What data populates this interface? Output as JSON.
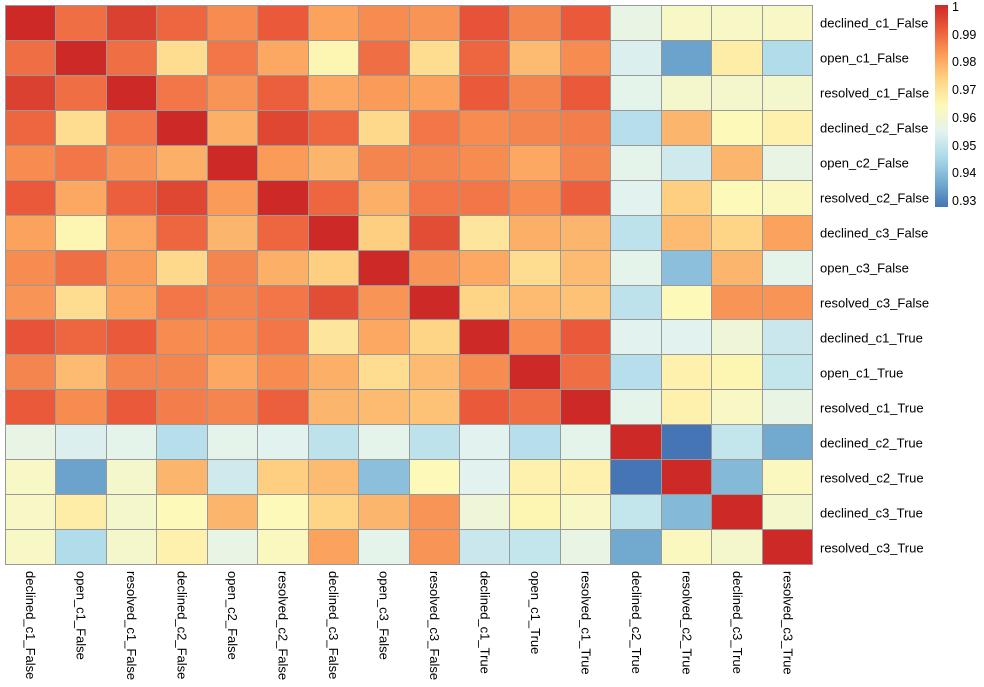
{
  "figure": {
    "background": "#ffffff",
    "grid_line_color": "#999999",
    "label_color": "#000000"
  },
  "chart_data": {
    "type": "heatmap",
    "title": "",
    "labels": [
      "declined_c1_False",
      "open_c1_False",
      "resolved_c1_False",
      "declined_c2_False",
      "open_c2_False",
      "resolved_c2_False",
      "declined_c3_False",
      "open_c3_False",
      "resolved_c3_False",
      "declined_c1_True",
      "open_c1_True",
      "resolved_c1_True",
      "declined_c2_True",
      "resolved_c2_True",
      "declined_c3_True",
      "resolved_c3_True"
    ],
    "matrix": [
      [
        1.0,
        0.989,
        0.996,
        0.99,
        0.985,
        0.992,
        0.982,
        0.985,
        0.984,
        0.993,
        0.986,
        0.992,
        0.958,
        0.963,
        0.963,
        0.963
      ],
      [
        0.989,
        1.0,
        0.989,
        0.972,
        0.988,
        0.981,
        0.966,
        0.989,
        0.972,
        0.99,
        0.978,
        0.985,
        0.955,
        0.937,
        0.968,
        0.948
      ],
      [
        0.996,
        0.989,
        1.0,
        0.988,
        0.984,
        0.991,
        0.981,
        0.983,
        0.982,
        0.992,
        0.986,
        0.992,
        0.957,
        0.962,
        0.962,
        0.962
      ],
      [
        0.99,
        0.972,
        0.988,
        1.0,
        0.98,
        0.995,
        0.99,
        0.973,
        0.988,
        0.985,
        0.986,
        0.987,
        0.949,
        0.979,
        0.965,
        0.967
      ],
      [
        0.985,
        0.988,
        0.984,
        0.98,
        1.0,
        0.983,
        0.979,
        0.986,
        0.986,
        0.985,
        0.981,
        0.986,
        0.957,
        0.953,
        0.979,
        0.958
      ],
      [
        0.992,
        0.981,
        0.991,
        0.995,
        0.983,
        1.0,
        0.99,
        0.98,
        0.988,
        0.988,
        0.985,
        0.991,
        0.956,
        0.975,
        0.965,
        0.964
      ],
      [
        0.982,
        0.966,
        0.981,
        0.99,
        0.979,
        0.99,
        1.0,
        0.975,
        0.994,
        0.97,
        0.98,
        0.979,
        0.95,
        0.978,
        0.974,
        0.982
      ],
      [
        0.985,
        0.989,
        0.983,
        0.973,
        0.986,
        0.98,
        0.975,
        1.0,
        0.984,
        0.981,
        0.972,
        0.978,
        0.957,
        0.942,
        0.979,
        0.957
      ],
      [
        0.984,
        0.972,
        0.982,
        0.988,
        0.986,
        0.988,
        0.994,
        0.984,
        1.0,
        0.974,
        0.978,
        0.977,
        0.95,
        0.965,
        0.984,
        0.984
      ],
      [
        0.993,
        0.99,
        0.992,
        0.985,
        0.985,
        0.988,
        0.97,
        0.981,
        0.974,
        1.0,
        0.985,
        0.992,
        0.956,
        0.956,
        0.96,
        0.952
      ],
      [
        0.986,
        0.978,
        0.986,
        0.986,
        0.981,
        0.985,
        0.98,
        0.972,
        0.978,
        0.985,
        1.0,
        0.989,
        0.949,
        0.967,
        0.966,
        0.951
      ],
      [
        0.992,
        0.985,
        0.992,
        0.987,
        0.986,
        0.991,
        0.979,
        0.978,
        0.977,
        0.992,
        0.989,
        1.0,
        0.957,
        0.967,
        0.963,
        0.958
      ],
      [
        0.958,
        0.955,
        0.957,
        0.949,
        0.957,
        0.956,
        0.95,
        0.957,
        0.95,
        0.956,
        0.949,
        0.957,
        1.0,
        0.93,
        0.951,
        0.938
      ],
      [
        0.963,
        0.937,
        0.962,
        0.979,
        0.953,
        0.975,
        0.978,
        0.942,
        0.965,
        0.956,
        0.967,
        0.967,
        0.93,
        1.0,
        0.941,
        0.964
      ],
      [
        0.963,
        0.968,
        0.962,
        0.965,
        0.979,
        0.965,
        0.974,
        0.979,
        0.984,
        0.96,
        0.966,
        0.963,
        0.951,
        0.941,
        1.0,
        0.962
      ],
      [
        0.963,
        0.948,
        0.962,
        0.967,
        0.958,
        0.964,
        0.982,
        0.957,
        0.984,
        0.952,
        0.951,
        0.958,
        0.938,
        0.964,
        0.962,
        1.0
      ]
    ],
    "vmin": 0.93,
    "vmax": 1.0,
    "colormap": "RdYlBu_r",
    "colormap_anchors": [
      "#4575b4",
      "#76aed2",
      "#aedbea",
      "#e3f3ef",
      "#fdf9b8",
      "#fed687",
      "#fb9f5a",
      "#ec5d3c",
      "#cd2a27"
    ],
    "colorbar_ticks": [
      "1",
      "0.99",
      "0.98",
      "0.97",
      "0.96",
      "0.95",
      "0.94",
      "0.93"
    ],
    "colorbar_position": "top-right",
    "grid": "on",
    "xlabel": "",
    "ylabel": ""
  }
}
